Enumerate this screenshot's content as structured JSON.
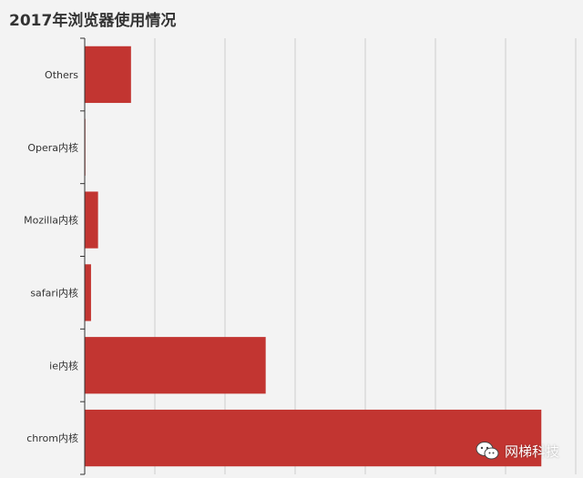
{
  "chart_data": {
    "type": "bar",
    "orientation": "horizontal",
    "title": "2017年浏览器使用情况",
    "categories": [
      "chrom内核",
      "ie内核",
      "safari内核",
      "Mozilla内核",
      "Opera内核",
      "Others"
    ],
    "values": [
      65.1,
      25.8,
      0.9,
      1.9,
      0.1,
      6.6
    ],
    "xlim": [
      0,
      70
    ],
    "x_grid_step": 10,
    "grid": "vertical",
    "bar_color": "#c23531",
    "x_tick_labels_shown": false
  },
  "watermark": {
    "text": "网梯科技",
    "icon": "wechat-icon"
  },
  "colors": {
    "background": "#f3f3f3",
    "bar": "#c23531",
    "grid": "#cccccc",
    "axis": "#333333"
  }
}
